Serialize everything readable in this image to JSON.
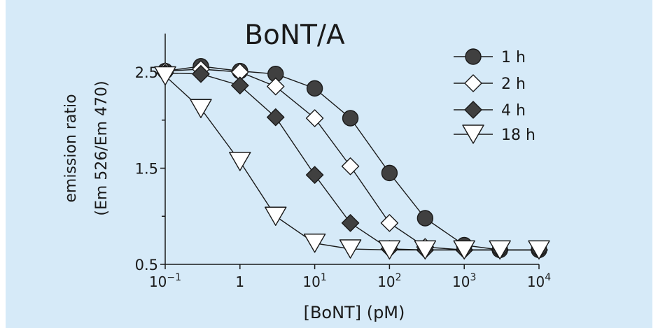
{
  "chart_data": {
    "type": "scatter",
    "title": "BoNT/A",
    "xlabel": "[BoNT] (pM)",
    "ylabel_line1": "emission ratio",
    "ylabel_line2": "(Em 526/Em 470)",
    "x_scale": "log",
    "xlim": [
      0.1,
      10000
    ],
    "ylim": [
      0.5,
      2.9
    ],
    "x_ticks": [
      0.1,
      1,
      10,
      100,
      1000,
      10000
    ],
    "x_tick_labels": [
      {
        "base": "10",
        "exp": "−1"
      },
      {
        "base": "1",
        "exp": ""
      },
      {
        "base": "10",
        "exp": "1"
      },
      {
        "base": "10",
        "exp": "2"
      },
      {
        "base": "10",
        "exp": "3"
      },
      {
        "base": "10",
        "exp": "4"
      }
    ],
    "y_ticks": [
      0.5,
      1.5,
      2.5
    ],
    "y_tick_labels": [
      "0.5",
      "1.5",
      "2.5"
    ],
    "y_minor_ticks": [
      1.0,
      2.0
    ],
    "grid": false,
    "legend_placement": "top-right",
    "colors": {
      "background": "#d6eaf8",
      "filled": "#404040",
      "axis": "#1a1a1a"
    },
    "series": [
      {
        "name": "1 h",
        "marker": "circle",
        "x": [
          0.1,
          0.3,
          1,
          3,
          10,
          30,
          100,
          300,
          1000,
          3000,
          10000
        ],
        "y": [
          2.51,
          2.56,
          2.51,
          2.48,
          2.33,
          2.02,
          1.45,
          0.98,
          0.7,
          0.65,
          0.65
        ]
      },
      {
        "name": "2 h",
        "marker": "diamond",
        "x": [
          0.1,
          0.3,
          1,
          3,
          10,
          30,
          100,
          300,
          1000,
          3000,
          10000
        ],
        "y": [
          2.51,
          2.53,
          2.5,
          2.35,
          2.02,
          1.52,
          0.93,
          0.68,
          0.65,
          0.65,
          0.65
        ]
      },
      {
        "name": "4 h",
        "marker": "diamond-filled",
        "x": [
          0.1,
          0.3,
          1,
          3,
          10,
          30,
          100,
          300,
          1000,
          3000,
          10000
        ],
        "y": [
          2.49,
          2.48,
          2.36,
          2.03,
          1.43,
          0.93,
          0.66,
          0.65,
          0.65,
          0.65,
          0.65
        ]
      },
      {
        "name": "18 h",
        "marker": "triangle-down",
        "x": [
          0.1,
          0.3,
          1,
          3,
          10,
          30,
          100,
          300,
          1000,
          3000,
          10000
        ],
        "y": [
          2.46,
          2.12,
          1.57,
          1.0,
          0.72,
          0.66,
          0.65,
          0.65,
          0.65,
          0.65,
          0.65
        ]
      }
    ]
  }
}
